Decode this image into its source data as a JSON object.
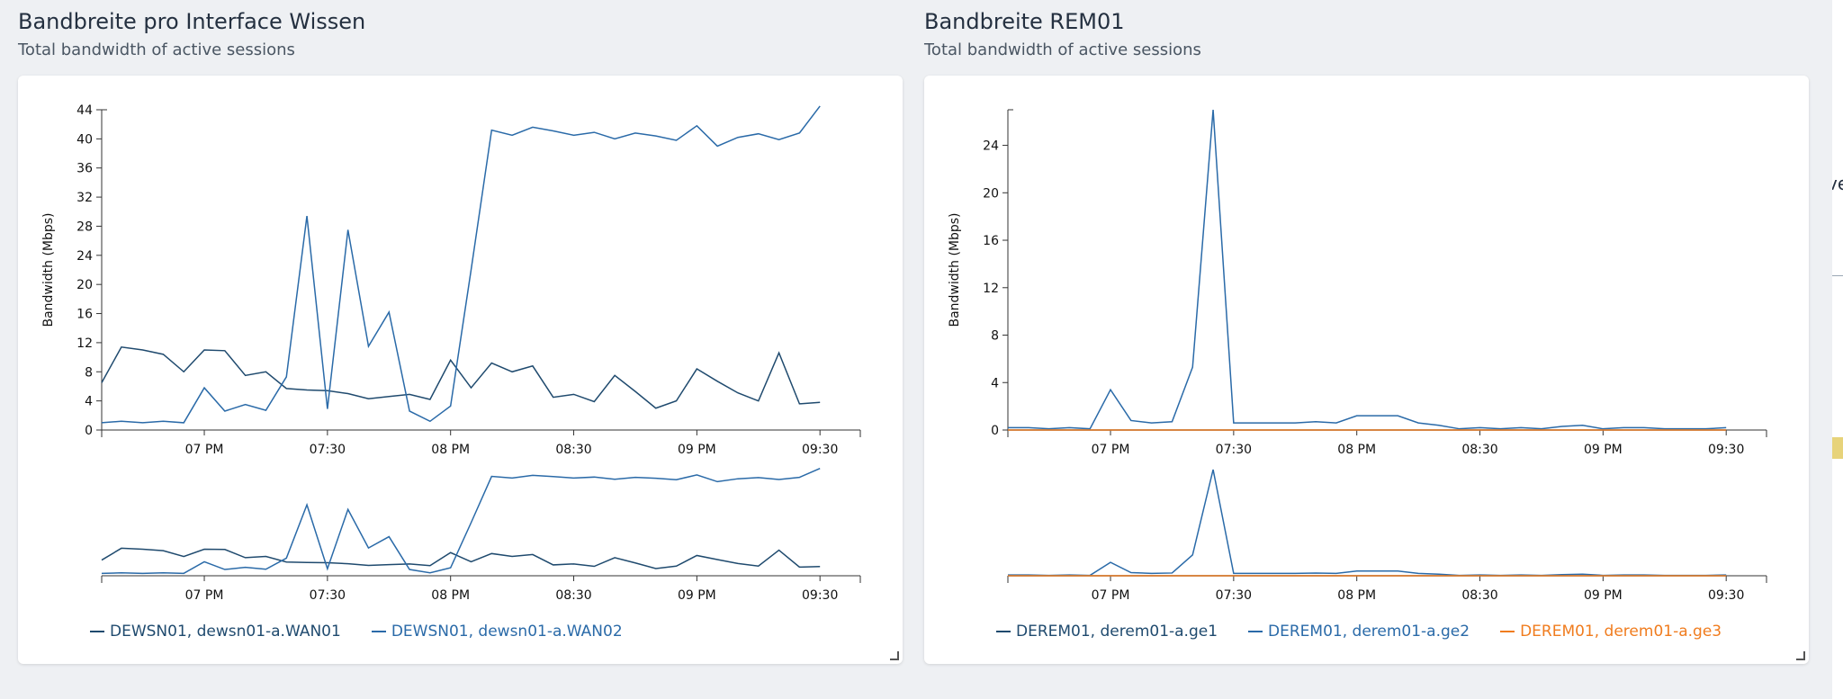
{
  "panels": [
    {
      "title": "Bandbreite pro Interface Wissen",
      "subtitle": "Total bandwidth of active sessions",
      "legend": [
        {
          "label": "DEWSN01, dewsn01-a.WAN01",
          "color": "#1f4a6e"
        },
        {
          "label": "DEWSN01, dewsn01-a.WAN02",
          "color": "#2a6aa8"
        }
      ]
    },
    {
      "title": "Bandbreite REM01",
      "subtitle": "Total bandwidth of active sessions",
      "legend": [
        {
          "label": "DEREM01, derem01-a.ge1",
          "color": "#1f4a6e"
        },
        {
          "label": "DEREM01, derem01-a.ge2",
          "color": "#2a6aa8"
        },
        {
          "label": "DEREM01, derem01-a.ge3",
          "color": "#f07c1e"
        }
      ]
    }
  ],
  "chart_data": [
    {
      "type": "line",
      "title": "Bandbreite pro Interface Wissen",
      "ylabel": "Bandwidth (Mbps)",
      "ylim": [
        0,
        44
      ],
      "yticks": [
        0,
        4,
        8,
        12,
        16,
        20,
        24,
        28,
        32,
        36,
        40,
        44
      ],
      "xticks": [
        "07 PM",
        "07:30",
        "08 PM",
        "08:30",
        "09 PM",
        "09:30"
      ],
      "x": [
        0,
        1,
        2,
        3,
        4,
        5,
        6,
        7,
        8,
        9,
        10,
        11,
        12,
        13,
        14,
        15,
        16,
        17,
        18,
        19,
        20,
        21,
        22,
        23,
        24,
        25,
        26,
        27,
        28,
        29,
        30,
        31,
        32,
        33,
        34,
        35,
        36,
        37,
        38,
        39,
        40,
        41,
        42,
        43,
        44,
        45,
        46,
        47,
        48,
        49,
        50,
        51,
        52,
        53,
        54,
        55,
        56,
        57,
        58,
        59,
        60,
        61,
        62,
        63,
        64,
        65,
        66,
        67,
        68,
        69,
        70,
        71,
        72,
        73,
        74,
        75,
        76,
        77,
        78,
        79,
        80,
        81,
        82,
        83,
        84,
        85,
        86,
        87,
        88
      ],
      "xlim": [
        0,
        90
      ],
      "x_time_note": "07 PM at x=12.5, 07:30 at x=27.5 ... 09:30 at x=87.5",
      "series": [
        {
          "name": "DEWSN01, dewsn01-a.WAN01",
          "x": [
            0,
            2.4,
            5,
            7.5,
            10,
            12.5,
            15,
            17.5,
            20,
            22.5,
            25,
            27.5,
            30,
            32.5,
            35,
            37.5,
            40,
            42.5,
            45,
            47.5,
            50,
            52.5,
            55,
            57.5,
            60,
            62.5,
            65,
            67.5,
            70,
            72.5,
            75,
            77.5,
            80,
            82.5,
            85,
            87.5
          ],
          "values": [
            6.5,
            11.4,
            11.0,
            10.4,
            8.0,
            11.0,
            10.9,
            7.5,
            8.0,
            5.7,
            5.5,
            5.4,
            5.0,
            4.3,
            4.6,
            4.9,
            4.2,
            9.6,
            5.8,
            9.2,
            8.0,
            8.8,
            4.5,
            4.9,
            3.9,
            7.5,
            5.3,
            3.0,
            4.0,
            8.4,
            6.7,
            5.1,
            4.0,
            10.6,
            3.6,
            3.8
          ]
        },
        {
          "name": "DEWSN01, dewsn01-a.WAN02",
          "x": [
            0,
            2.4,
            5,
            7.5,
            10,
            12.5,
            15,
            17.5,
            20,
            22.5,
            25,
            27.5,
            30,
            32.5,
            35,
            37.5,
            40,
            42.5,
            45,
            47.5,
            50,
            52.5,
            55,
            57.5,
            60,
            62.5,
            65,
            67.5,
            70,
            72.5,
            75,
            77.5,
            80,
            82.5,
            85,
            87.5
          ],
          "values": [
            1.0,
            1.2,
            1.0,
            1.2,
            1.0,
            5.8,
            2.6,
            3.5,
            2.7,
            7.3,
            29.4,
            2.9,
            27.5,
            11.5,
            16.2,
            2.6,
            1.2,
            3.3,
            22.0,
            41.2,
            40.5,
            41.6,
            41.1,
            40.5,
            40.9,
            40.0,
            40.8,
            40.4,
            39.8,
            41.8,
            39.0,
            40.2,
            40.7,
            39.9,
            40.8,
            44.5
          ]
        }
      ]
    },
    {
      "type": "line",
      "title": "Bandbreite REM01",
      "ylabel": "Bandwidth (Mbps)",
      "ylim": [
        0,
        27
      ],
      "yticks": [
        0,
        4,
        8,
        12,
        16,
        20,
        24
      ],
      "xticks": [
        "07 PM",
        "07:30",
        "08 PM",
        "08:30",
        "09 PM",
        "09:30"
      ],
      "xlim": [
        0,
        90
      ],
      "series": [
        {
          "name": "DEREM01, derem01-a.ge1",
          "x": [
            0,
            87.5
          ],
          "values": [
            0.0,
            0.0
          ]
        },
        {
          "name": "DEREM01, derem01-a.ge2",
          "x": [
            0,
            2.5,
            5,
            7.5,
            10,
            12.5,
            15,
            17.5,
            20,
            22.5,
            25,
            27.5,
            30,
            32.5,
            35,
            37.5,
            40,
            42.5,
            45,
            47.5,
            50,
            52.5,
            55,
            57.5,
            60,
            62.5,
            65,
            67.5,
            70,
            72.5,
            75,
            77.5,
            80,
            82.5,
            85,
            87.5
          ],
          "values": [
            0.2,
            0.2,
            0.1,
            0.2,
            0.1,
            3.4,
            0.8,
            0.6,
            0.7,
            5.3,
            27.0,
            0.6,
            0.6,
            0.6,
            0.6,
            0.7,
            0.6,
            1.2,
            1.2,
            1.2,
            0.6,
            0.4,
            0.1,
            0.2,
            0.1,
            0.2,
            0.1,
            0.3,
            0.4,
            0.1,
            0.2,
            0.2,
            0.1,
            0.1,
            0.1,
            0.2
          ]
        },
        {
          "name": "DEREM01, derem01-a.ge3",
          "x": [
            0,
            87.5
          ],
          "values": [
            0.0,
            0.0
          ]
        }
      ]
    }
  ],
  "edge": {
    "text": "ve"
  }
}
